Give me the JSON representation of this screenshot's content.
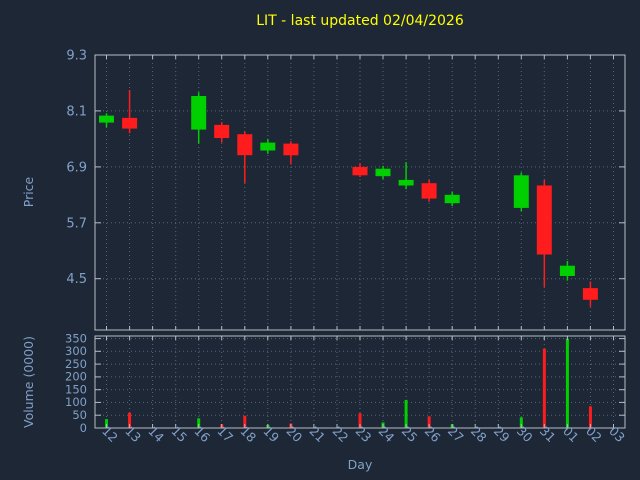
{
  "title": "LIT - last updated 02/04/2026",
  "colors": {
    "background": "#1d2736",
    "title": "#ffff00",
    "axis_text": "#82a0c8",
    "grid": "#56687e",
    "border": "#b6bdc6",
    "up": "#00d000",
    "down": "#ff1c1c"
  },
  "chart_data": {
    "type": "candlestick_with_volume",
    "title": "LIT - last updated 02/04/2026",
    "xlabel": "Day",
    "grid": true,
    "price_axis": {
      "label": "Price",
      "ticks": [
        "9.3",
        "8.1",
        "6.9",
        "5.7",
        "4.5"
      ],
      "range": [
        3.4,
        9.3
      ]
    },
    "volume_axis": {
      "label": "Volume (0000)",
      "ticks": [
        "350",
        "300",
        "250",
        "200",
        "150",
        "100",
        "50",
        "0"
      ],
      "range": [
        0,
        360
      ]
    },
    "categories": [
      "12",
      "13",
      "14",
      "15",
      "16",
      "17",
      "18",
      "19",
      "20",
      "21",
      "22",
      "23",
      "24",
      "25",
      "26",
      "27",
      "28",
      "29",
      "30",
      "31",
      "01",
      "02",
      "03"
    ],
    "candles": [
      {
        "day": "12",
        "open": 7.85,
        "high": 8.05,
        "low": 7.75,
        "close": 8.0,
        "volume": 35
      },
      {
        "day": "13",
        "open": 7.95,
        "high": 8.55,
        "low": 7.62,
        "close": 7.72,
        "volume": 60
      },
      {
        "day": "16",
        "open": 7.7,
        "high": 8.5,
        "low": 7.4,
        "close": 8.42,
        "volume": 38
      },
      {
        "day": "17",
        "open": 7.8,
        "high": 7.86,
        "low": 7.42,
        "close": 7.52,
        "volume": 15
      },
      {
        "day": "18",
        "open": 7.6,
        "high": 7.66,
        "low": 6.55,
        "close": 7.15,
        "volume": 48
      },
      {
        "day": "19",
        "open": 7.25,
        "high": 7.5,
        "low": 7.18,
        "close": 7.42,
        "volume": 12
      },
      {
        "day": "20",
        "open": 7.4,
        "high": 7.45,
        "low": 6.95,
        "close": 7.15,
        "volume": 18
      },
      {
        "day": "23",
        "open": 6.9,
        "high": 6.98,
        "low": 6.68,
        "close": 6.72,
        "volume": 58
      },
      {
        "day": "24",
        "open": 6.7,
        "high": 6.92,
        "low": 6.64,
        "close": 6.86,
        "volume": 22
      },
      {
        "day": "25",
        "open": 6.5,
        "high": 7.0,
        "low": 6.42,
        "close": 6.62,
        "volume": 110
      },
      {
        "day": "26",
        "open": 6.55,
        "high": 6.62,
        "low": 6.15,
        "close": 6.22,
        "volume": 45
      },
      {
        "day": "27",
        "open": 6.12,
        "high": 6.36,
        "low": 6.06,
        "close": 6.3,
        "volume": 15
      },
      {
        "day": "30",
        "open": 6.02,
        "high": 6.78,
        "low": 5.95,
        "close": 6.72,
        "volume": 42
      },
      {
        "day": "31",
        "open": 6.5,
        "high": 6.62,
        "low": 4.32,
        "close": 5.02,
        "volume": 310
      },
      {
        "day": "01",
        "open": 4.56,
        "high": 4.88,
        "low": 4.46,
        "close": 4.78,
        "volume": 350
      },
      {
        "day": "02",
        "open": 4.3,
        "high": 4.44,
        "low": 3.9,
        "close": 4.05,
        "volume": 85
      }
    ]
  }
}
